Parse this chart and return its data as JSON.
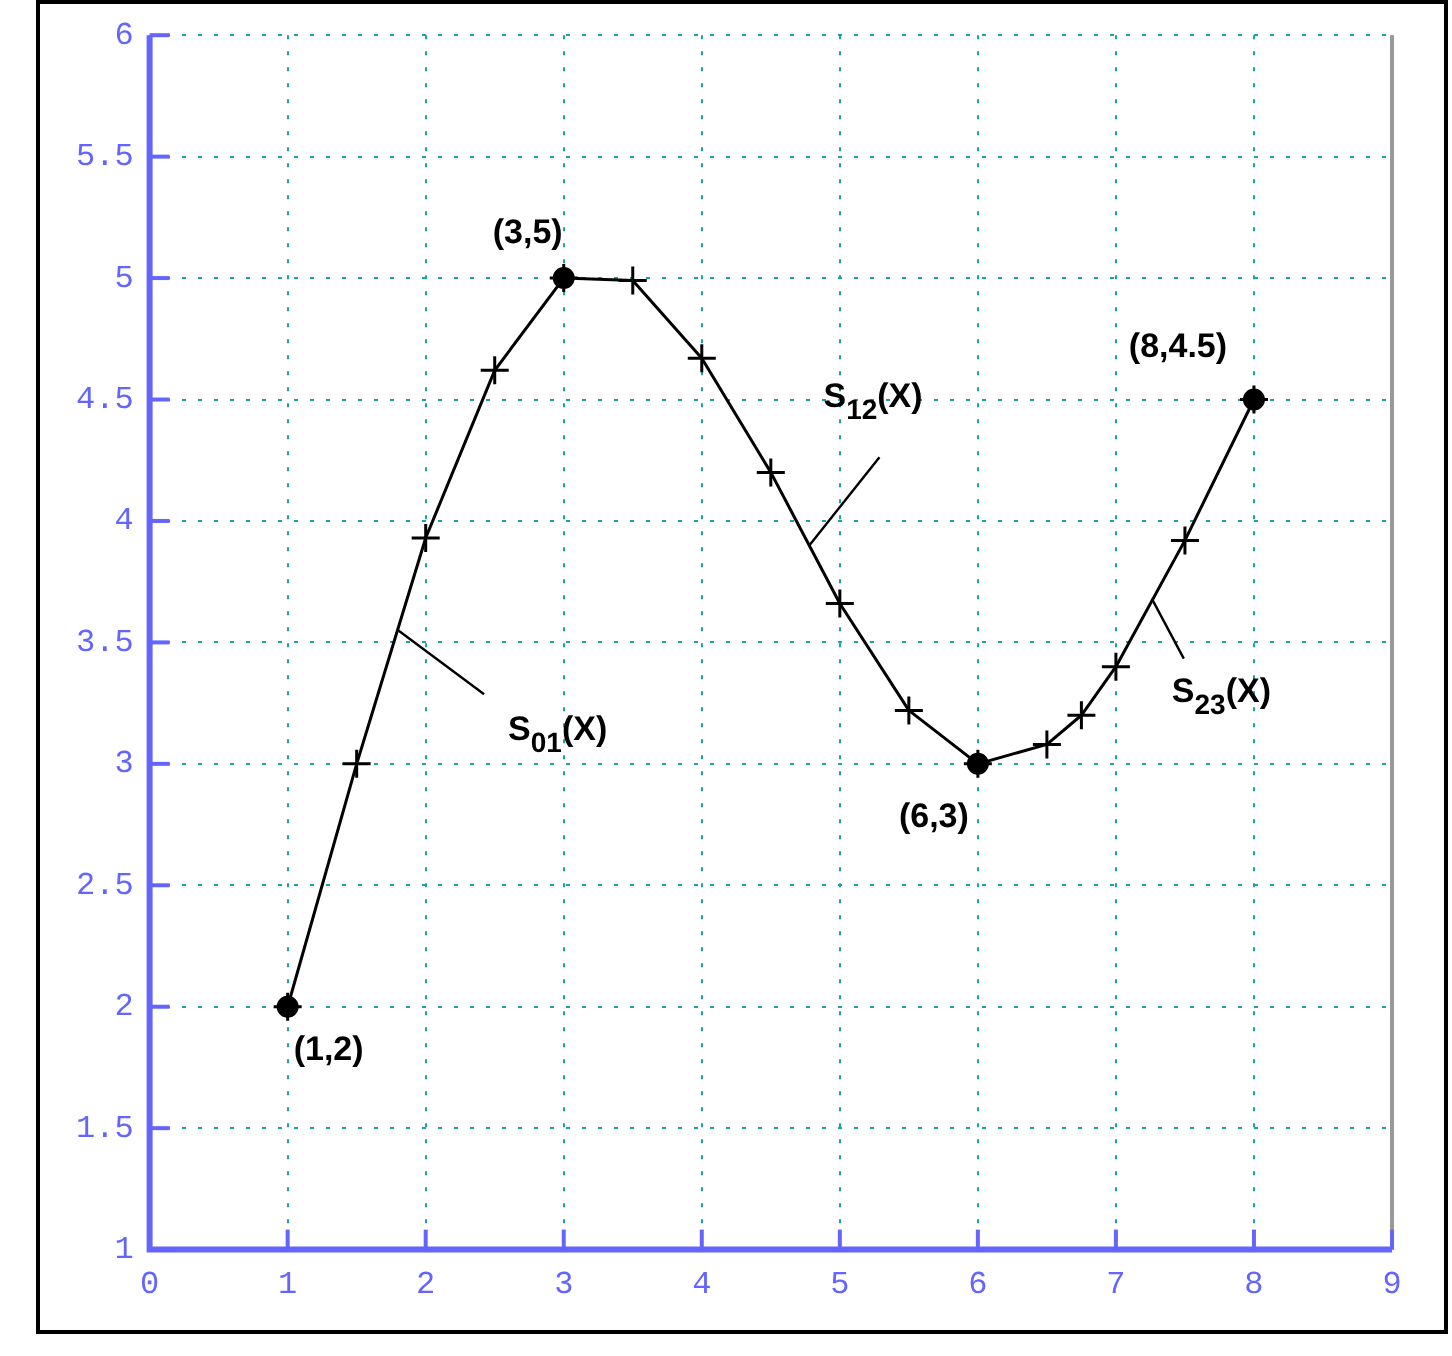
{
  "chart_data": {
    "type": "line",
    "xlim": [
      0,
      9
    ],
    "ylim": [
      1,
      6
    ],
    "xticks": [
      0,
      1,
      2,
      3,
      4,
      5,
      6,
      7,
      8,
      9
    ],
    "yticks": [
      1,
      1.5,
      2,
      2.5,
      3,
      3.5,
      4,
      4.5,
      5,
      5.5,
      6
    ],
    "grid": true,
    "legend": false,
    "line_style": "solid",
    "series": [
      {
        "type": "line",
        "color": "#000000",
        "marker": "cross",
        "x": [
          1,
          1.5,
          2,
          2.5,
          3,
          3.5,
          4,
          4.5,
          5,
          5.5,
          6,
          6.5,
          6.75,
          7,
          7.5,
          8
        ],
        "values": [
          2,
          3,
          3.93,
          4.62,
          5,
          4.99,
          4.67,
          4.2,
          3.66,
          3.22,
          3,
          3.08,
          3.2,
          3.4,
          3.92,
          4.5
        ]
      },
      {
        "type": "scatter",
        "color": "#000000",
        "marker": "circle",
        "x": [
          1,
          3,
          6,
          8
        ],
        "values": [
          2,
          5,
          3,
          4.5
        ]
      }
    ],
    "annotations": [
      {
        "text": "(1,2)",
        "x": 1,
        "y": 2
      },
      {
        "text": "(3,5)",
        "x": 3,
        "y": 5
      },
      {
        "text": "(6,3)",
        "x": 6,
        "y": 3
      },
      {
        "text": "(8,4.5)",
        "x": 8,
        "y": 4.5
      },
      {
        "text": "S$_{01}$(X)",
        "x": 1.8,
        "y": 3.55
      },
      {
        "text": "S$_{12}$(X)",
        "x": 4.78,
        "y": 3.9
      },
      {
        "text": "S$_{23}$(X)",
        "x": 7.26,
        "y": 3.68
      }
    ]
  }
}
